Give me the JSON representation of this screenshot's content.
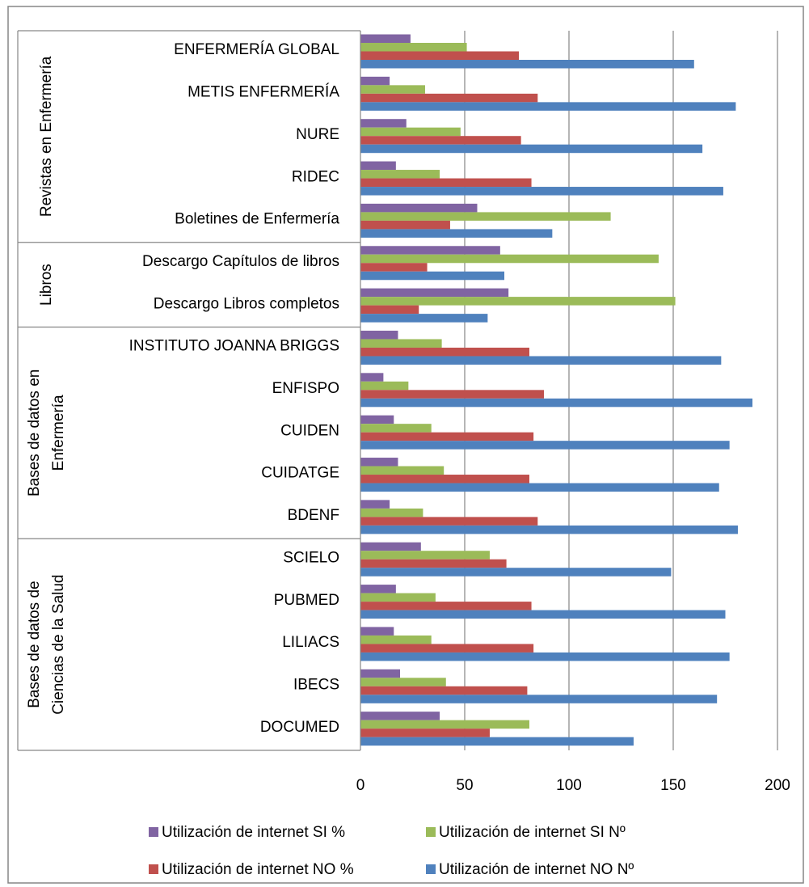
{
  "chart_data": {
    "type": "bar",
    "orientation": "horizontal",
    "categories": [
      "ENFERMERÍA GLOBAL",
      "METIS ENFERMERÍA",
      "NURE",
      "RIDEC",
      "Boletines de Enfermería",
      "Descargo Capítulos de libros",
      "Descargo Libros completos",
      "INSTITUTO JOANNA BRIGGS",
      "ENFISPO",
      "CUIDEN",
      "CUIDATGE",
      "BDENF",
      "SCIELO",
      "PUBMED",
      "LILIACS",
      "IBECS",
      "DOCUMED"
    ],
    "groups": [
      {
        "label_lines": [
          "Revistas en Enfermería"
        ],
        "start": 0,
        "end": 4
      },
      {
        "label_lines": [
          "Libros"
        ],
        "start": 5,
        "end": 6
      },
      {
        "label_lines": [
          "Bases de datos en",
          "Enfermería"
        ],
        "start": 7,
        "end": 11
      },
      {
        "label_lines": [
          "Bases de datos de",
          "Ciencias de la Salud"
        ],
        "start": 12,
        "end": 16
      }
    ],
    "series": [
      {
        "name": "Utilización de internet SI %",
        "color": "#8064A2",
        "values": [
          24,
          14,
          22,
          17,
          56,
          67,
          71,
          18,
          11,
          16,
          18,
          14,
          29,
          17,
          16,
          19,
          38
        ]
      },
      {
        "name": "Utilización de internet SI Nº",
        "color": "#9BBB59",
        "values": [
          51,
          31,
          48,
          38,
          120,
          143,
          151,
          39,
          23,
          34,
          40,
          30,
          62,
          36,
          34,
          41,
          81
        ]
      },
      {
        "name": "Utilización de internet NO %",
        "color": "#C0504D",
        "values": [
          76,
          85,
          77,
          82,
          43,
          32,
          28,
          81,
          88,
          83,
          81,
          85,
          70,
          82,
          83,
          80,
          62
        ]
      },
      {
        "name": "Utilización de internet NO Nº",
        "color": "#4F81BD",
        "values": [
          160,
          180,
          164,
          174,
          92,
          69,
          61,
          173,
          188,
          177,
          172,
          181,
          149,
          175,
          177,
          171,
          131
        ]
      }
    ],
    "xlim": [
      0,
      200
    ],
    "xticks": [
      0,
      50,
      100,
      150,
      200
    ],
    "grid": "vertical",
    "legend": "bottom",
    "legend_rows": [
      [
        0,
        1
      ],
      [
        2,
        3
      ]
    ]
  }
}
